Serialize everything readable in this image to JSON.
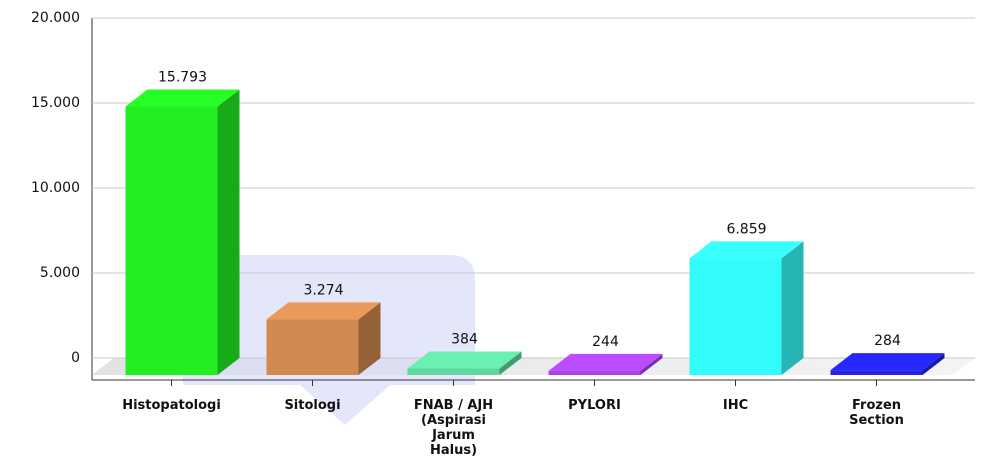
{
  "chart_data": {
    "type": "bar3d",
    "categories": [
      "Histopatologi",
      "Sitologi",
      "FNAB / AJH (Aspirasi Jarum Halus)",
      "PYLORI",
      "IHC",
      "Frozen Section"
    ],
    "values": [
      15793,
      3274,
      384,
      244,
      6859,
      284
    ],
    "value_labels": [
      "15.793",
      "3.274",
      "384",
      "244",
      "6.859",
      "284"
    ],
    "colors": [
      "#22ee22",
      "#d0894f",
      "#5fd79e",
      "#a844f2",
      "#33fbfb",
      "#2323e6"
    ],
    "ylim": [
      0,
      20000
    ],
    "yticks": [
      0,
      {
        "value": 5000,
        "label": "5.000"
      },
      {
        "value": 10000,
        "label": "10.000"
      },
      {
        "value": 15000,
        "label": "15.000"
      },
      {
        "value": 20000,
        "label": "20.000"
      }
    ],
    "grid": true
  }
}
